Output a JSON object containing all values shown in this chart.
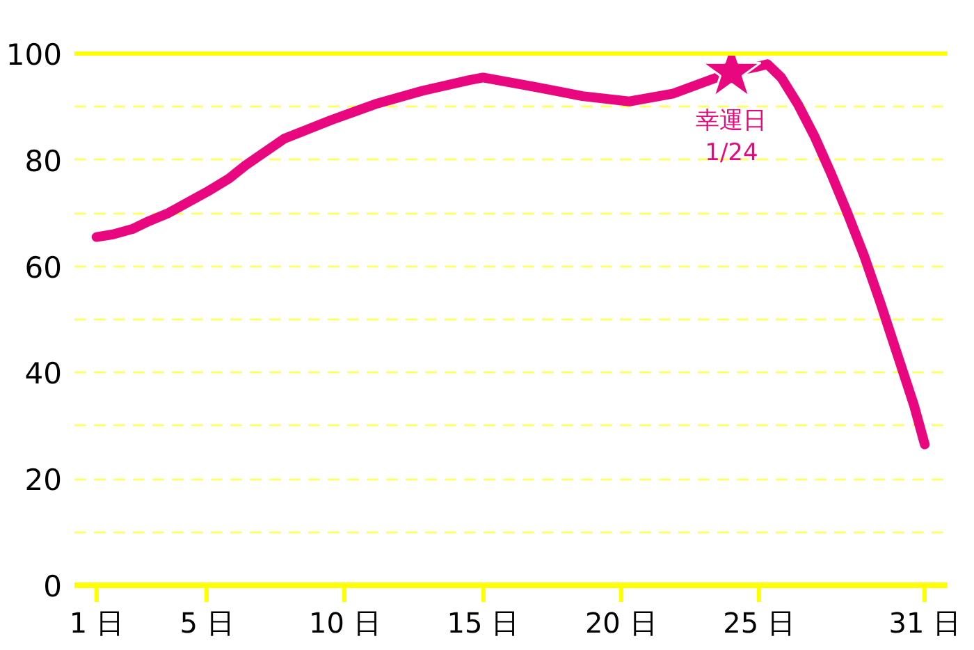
{
  "chart_data": {
    "type": "line",
    "x": [
      1,
      1.6,
      2.3,
      2.9,
      3.6,
      4.3,
      5,
      5.8,
      6.4,
      7.8,
      9.5,
      11.1,
      12.8,
      14.5,
      15,
      16.6,
      17.6,
      18.6,
      20.3,
      21.9,
      23.2,
      24,
      24.9,
      25.3,
      25.8,
      26.4,
      27,
      27.6,
      28.2,
      28.8,
      29.4,
      30,
      30.6,
      31
    ],
    "series": [
      {
        "values": [
          65.5,
          66,
          67,
          68.5,
          70,
          72,
          74,
          76.5,
          79,
          84,
          87.5,
          90.5,
          93,
          95,
          95.5,
          94,
          93,
          92,
          91,
          92.5,
          95,
          96.5,
          97.5,
          98,
          95.5,
          90.5,
          84.5,
          77.5,
          70,
          62,
          53,
          43.5,
          34,
          26.5
        ],
        "color": "#e9077f",
        "line_style": "solid"
      },
      {
        "type": "scatter",
        "x": [
          24
        ],
        "values": [
          96.5
        ],
        "color": "#e9077f",
        "marker": "star"
      }
    ],
    "xlim": [
      0.2,
      31.8
    ],
    "xticks": [
      {
        "value": 1,
        "label": "1 日"
      },
      {
        "value": 5,
        "label": "5 日"
      },
      {
        "value": 10,
        "label": "10 日"
      },
      {
        "value": 15,
        "label": "15 日"
      },
      {
        "value": 20,
        "label": "20 日"
      },
      {
        "value": 25,
        "label": "25 日"
      },
      {
        "value": 31,
        "label": "31 日"
      }
    ],
    "ylim": [
      0,
      100
    ],
    "yticks": [
      0,
      {
        "value": 10,
        "label": null
      },
      20,
      {
        "value": 30,
        "label": null
      },
      40,
      {
        "value": 50,
        "label": null
      },
      60,
      {
        "value": 70,
        "label": null
      },
      80,
      {
        "value": 90,
        "label": null
      },
      100
    ],
    "grid": "y",
    "annotations": [
      {
        "text": "幸運日\n1/24",
        "x": 24,
        "y": 96.5
      }
    ]
  }
}
